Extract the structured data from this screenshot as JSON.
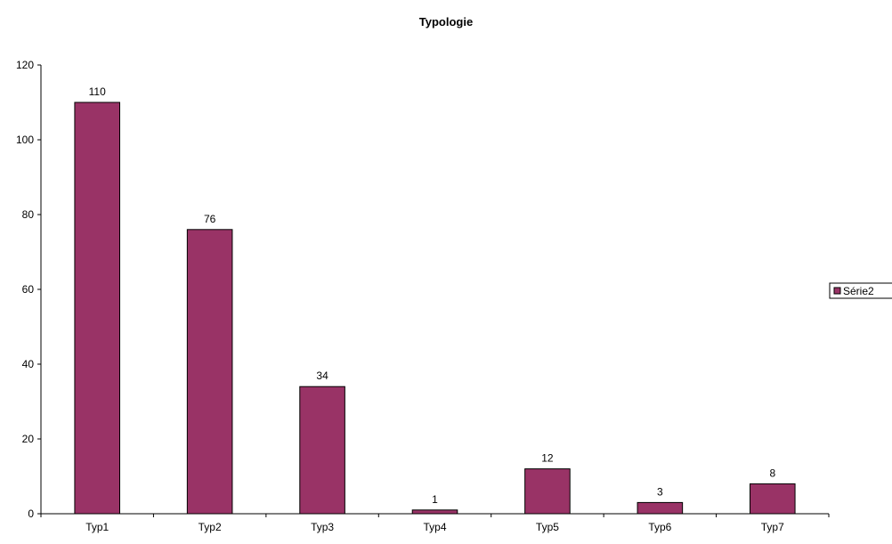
{
  "chart_data": {
    "type": "bar",
    "title": "Typologie",
    "xlabel": "",
    "ylabel": "",
    "categories": [
      "Typ1",
      "Typ2",
      "Typ3",
      "Typ4",
      "Typ5",
      "Typ6",
      "Typ7"
    ],
    "series": [
      {
        "name": "Série2",
        "values": [
          110,
          76,
          34,
          1,
          12,
          3,
          8
        ],
        "color": "#993366"
      }
    ],
    "ylim": [
      0,
      120
    ],
    "yticks": [
      0,
      20,
      40,
      60,
      80,
      100,
      120
    ],
    "data_labels": true,
    "grid": false,
    "legend_position": "right"
  }
}
